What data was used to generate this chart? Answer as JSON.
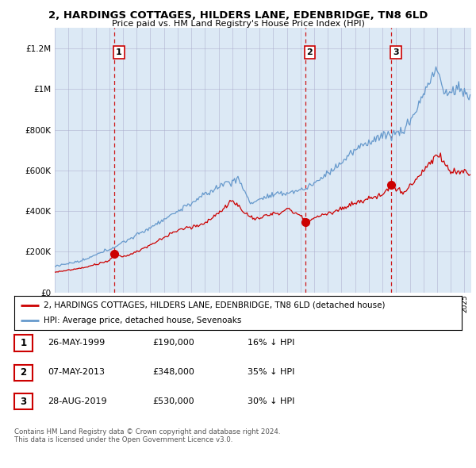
{
  "title": "2, HARDINGS COTTAGES, HILDERS LANE, EDENBRIDGE, TN8 6LD",
  "subtitle": "Price paid vs. HM Land Registry's House Price Index (HPI)",
  "legend_line1": "2, HARDINGS COTTAGES, HILDERS LANE, EDENBRIDGE, TN8 6LD (detached house)",
  "legend_line2": "HPI: Average price, detached house, Sevenoaks",
  "sale_color": "#cc0000",
  "hpi_color": "#6699cc",
  "bg_color": "#dce9f5",
  "background_color": "#ffffff",
  "grid_color": "#aaaacc",
  "ylim": [
    0,
    1300000
  ],
  "yticks": [
    0,
    200000,
    400000,
    600000,
    800000,
    1000000,
    1200000
  ],
  "ytick_labels": [
    "£0",
    "£200K",
    "£400K",
    "£600K",
    "£800K",
    "£1M",
    "£1.2M"
  ],
  "sale_vlines": [
    1999.38,
    2013.35,
    2019.66
  ],
  "sale_prices": [
    190000,
    348000,
    530000
  ],
  "sale_labels": [
    "1",
    "2",
    "3"
  ],
  "table_data": [
    [
      "1",
      "26-MAY-1999",
      "£190,000",
      "16% ↓ HPI"
    ],
    [
      "2",
      "07-MAY-2013",
      "£348,000",
      "35% ↓ HPI"
    ],
    [
      "3",
      "28-AUG-2019",
      "£530,000",
      "30% ↓ HPI"
    ]
  ],
  "footer": "Contains HM Land Registry data © Crown copyright and database right 2024.\nThis data is licensed under the Open Government Licence v3.0.",
  "xmin": 1995.0,
  "xmax": 2025.5
}
